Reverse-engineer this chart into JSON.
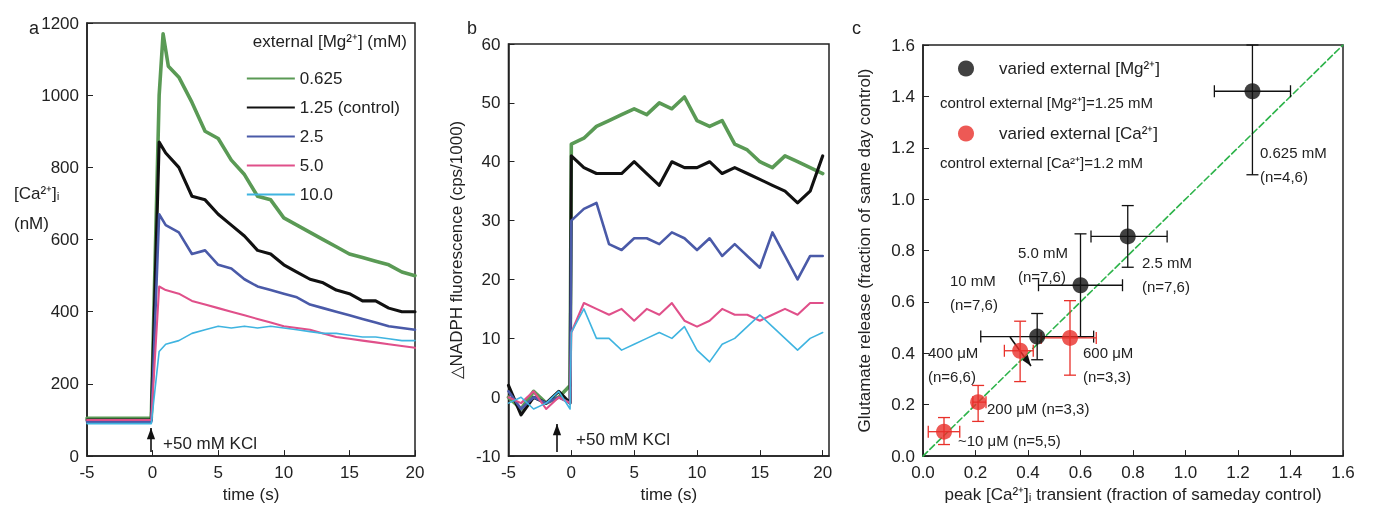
{
  "chart_data": [
    {
      "type": "line",
      "title": "a",
      "xlabel": "time (s)",
      "ylabel": "[Ca²⁺]ᵢ\n(nM)",
      "legend_title": "external [Mg²⁺] (mM)",
      "legend": "top right",
      "marker": "none",
      "line_style": "solid",
      "grid": false,
      "xlim": [
        -5,
        20
      ],
      "xticks": [
        -5,
        0,
        5,
        10,
        15,
        20
      ],
      "ylim": [
        0,
        1200
      ],
      "yticks": [
        0,
        200,
        400,
        600,
        800,
        1000,
        1200
      ],
      "annotations": [
        "+50 mM KCl"
      ],
      "series": [
        {
          "name": "0.625",
          "color": "#5a9a55",
          "x": [
            -5,
            -0.1,
            0.5,
            0.8,
            1.2,
            2,
            3,
            4,
            5,
            6,
            7,
            8,
            9,
            10,
            11,
            12,
            13,
            14,
            15,
            16,
            17,
            18,
            19,
            20
          ],
          "values": [
            105,
            105,
            1000,
            1170,
            1080,
            1050,
            980,
            900,
            880,
            820,
            780,
            720,
            710,
            660,
            640,
            620,
            600,
            580,
            560,
            550,
            540,
            530,
            510,
            500
          ]
        },
        {
          "name": "1.25 (control)",
          "color": "#111111",
          "x": [
            -5,
            -0.1,
            0.5,
            1,
            2,
            3,
            4,
            5,
            6,
            7,
            8,
            9,
            10,
            11,
            12,
            13,
            14,
            15,
            16,
            17,
            18,
            19,
            20
          ],
          "values": [
            100,
            100,
            870,
            840,
            800,
            720,
            710,
            670,
            640,
            610,
            570,
            560,
            530,
            510,
            490,
            480,
            460,
            450,
            430,
            430,
            410,
            400,
            400
          ]
        },
        {
          "name": "2.5",
          "color": "#4a5aa8",
          "x": [
            -5,
            -0.1,
            0.5,
            1,
            2,
            3,
            4,
            5,
            6,
            7,
            8,
            9,
            10,
            11,
            12,
            13,
            14,
            15,
            16,
            17,
            18,
            19,
            20
          ],
          "values": [
            95,
            95,
            670,
            640,
            620,
            560,
            570,
            530,
            520,
            490,
            470,
            460,
            450,
            440,
            420,
            410,
            400,
            390,
            380,
            370,
            360,
            355,
            350
          ]
        },
        {
          "name": "5.0",
          "color": "#e0508a",
          "x": [
            -5,
            -0.1,
            0.5,
            1,
            2,
            3,
            4,
            5,
            6,
            7,
            8,
            9,
            10,
            11,
            12,
            13,
            14,
            15,
            16,
            17,
            18,
            19,
            20
          ],
          "values": [
            100,
            100,
            470,
            460,
            450,
            430,
            420,
            410,
            400,
            390,
            380,
            370,
            360,
            355,
            350,
            340,
            330,
            325,
            320,
            315,
            310,
            305,
            300
          ]
        },
        {
          "name": "10.0",
          "color": "#3fb4e0",
          "x": [
            -5,
            -0.1,
            0.5,
            1,
            2,
            3,
            4,
            5,
            6,
            7,
            8,
            9,
            10,
            11,
            12,
            13,
            14,
            15,
            16,
            17,
            18,
            19,
            20
          ],
          "values": [
            90,
            90,
            290,
            310,
            320,
            340,
            350,
            360,
            355,
            360,
            355,
            360,
            355,
            350,
            345,
            340,
            340,
            335,
            330,
            330,
            325,
            320,
            320
          ]
        }
      ]
    },
    {
      "type": "line",
      "title": "b",
      "xlabel": "time (s)",
      "ylabel": "△NADPH fluorescence (cps/1000)",
      "marker": "none",
      "line_style": "solid",
      "grid": false,
      "xlim": [
        -5,
        20.5
      ],
      "xticks": [
        -5,
        0,
        5,
        10,
        15,
        20
      ],
      "ylim": [
        -10,
        60
      ],
      "yticks": [
        -10,
        0,
        10,
        20,
        30,
        40,
        50,
        60
      ],
      "annotations": [
        "+50 mM KCl"
      ],
      "series": [
        {
          "color": "#5a9a55",
          "x": [
            -5,
            -4,
            -3,
            -2,
            -1,
            -0.1,
            0,
            1,
            2,
            3,
            4,
            5,
            6,
            7,
            8,
            9,
            10,
            11,
            12,
            13,
            14,
            15,
            16,
            17,
            18,
            19,
            20
          ],
          "values": [
            0,
            -2,
            1,
            -1,
            0,
            2,
            43,
            44,
            46,
            47,
            48,
            49,
            48,
            50,
            49,
            51,
            47,
            46,
            47,
            43,
            42,
            40,
            39,
            41,
            40,
            39,
            38
          ]
        },
        {
          "color": "#111111",
          "x": [
            -5,
            -4,
            -3,
            -2,
            -1,
            -0.1,
            0,
            1,
            2,
            3,
            4,
            5,
            6,
            7,
            8,
            9,
            10,
            11,
            12,
            13,
            14,
            15,
            16,
            17,
            18,
            19,
            20
          ],
          "values": [
            2,
            -3,
            0,
            -1,
            1,
            -1,
            41,
            39,
            38,
            38,
            38,
            40,
            38,
            36,
            40,
            39,
            39,
            40,
            38,
            39,
            38,
            37,
            36,
            35,
            33,
            35,
            41
          ]
        },
        {
          "color": "#4a5aa8",
          "x": [
            -5,
            -4,
            -3,
            -2,
            -1,
            -0.1,
            0,
            1,
            2,
            3,
            4,
            5,
            6,
            7,
            8,
            9,
            10,
            11,
            12,
            13,
            14,
            15,
            16,
            17,
            18,
            19,
            20
          ],
          "values": [
            1,
            -2,
            0,
            -1,
            0,
            -1,
            30,
            32,
            33,
            26,
            25,
            27,
            27,
            26,
            28,
            27,
            25,
            27,
            24,
            26,
            24,
            22,
            28,
            24,
            20,
            24,
            24
          ]
        },
        {
          "color": "#e0508a",
          "x": [
            -5,
            -4,
            -3,
            -2,
            -1,
            -0.1,
            0,
            1,
            2,
            3,
            4,
            5,
            6,
            7,
            8,
            9,
            10,
            11,
            12,
            13,
            14,
            15,
            16,
            17,
            18,
            19,
            20
          ],
          "values": [
            0,
            -1,
            1,
            -2,
            0,
            -1,
            11,
            16,
            15,
            14,
            15,
            13,
            15,
            14,
            16,
            13,
            12,
            13,
            15,
            14,
            14,
            13,
            14,
            15,
            14,
            16,
            16
          ]
        },
        {
          "color": "#3fb4e0",
          "x": [
            -5,
            -4,
            -3,
            -2,
            -1,
            -0.1,
            0,
            1,
            2,
            3,
            4,
            5,
            6,
            7,
            8,
            9,
            10,
            11,
            12,
            13,
            14,
            15,
            16,
            17,
            18,
            19,
            20
          ],
          "values": [
            -1,
            0,
            -2,
            -1,
            1,
            -2,
            11,
            15,
            10,
            10,
            8,
            9,
            10,
            11,
            10,
            12,
            8,
            6,
            9,
            10,
            12,
            14,
            12,
            10,
            8,
            10,
            11
          ]
        }
      ]
    },
    {
      "type": "scatter",
      "title": "c",
      "xlabel": "peak [Ca²⁺]ᵢ transient (fraction of sameday control)",
      "ylabel": "Glutamate release (fraction of same day control)",
      "legend": "top left",
      "grid": false,
      "xlim": [
        0,
        1.6
      ],
      "xticks": [
        {
          "value": 0,
          "label": "0.0"
        },
        0.2,
        0.4,
        0.6,
        0.8,
        {
          "value": 1,
          "label": "1.0"
        },
        1.2,
        1.4,
        1.6
      ],
      "ylim": [
        0,
        1.6
      ],
      "yticks": [
        {
          "value": 0,
          "label": "0.0"
        },
        0.2,
        0.4,
        0.6,
        0.8,
        {
          "value": 1,
          "label": "1.0"
        },
        1.2,
        1.4,
        1.6
      ],
      "annotations": [
        "control external [Mg²⁺]=1.25 mM",
        "control external [Ca²⁺]=1.2 mM",
        "0.625 mM\n(n=4,6)",
        "10 mM\n(n=7,6)",
        "5.0 mM\n(n=7,6)",
        "2.5 mM\n(n=7,6)",
        "400 μM\n(n=6,6)",
        "600 μM\n(n=3,3)",
        "200 μM (n=3,3)",
        "~10 μM (n=5,5)"
      ],
      "series": [
        {
          "name": "varied external [Mg²⁺]",
          "color": "#111111",
          "marker": "circle",
          "x": [
            1.255,
            0.78,
            0.6,
            0.435
          ],
          "values": [
            1.42,
            0.855,
            0.665,
            0.465
          ],
          "errors": [
            [
              1.095,
              1.6
            ],
            [
              0.735,
              0.975
            ],
            [
              0.465,
              0.865
            ],
            [
              0.375,
              0.555
            ]
          ],
          "xerrors": [
            [
              1.11,
              1.4
            ],
            [
              0.64,
              0.93
            ],
            [
              0.44,
              0.76
            ],
            [
              0.22,
              0.65
            ]
          ]
        },
        {
          "name": "varied external [Ca²⁺]",
          "color": "#e8302a",
          "marker": "circle",
          "x": [
            0.56,
            0.37,
            0.21,
            0.08
          ],
          "values": [
            0.46,
            0.41,
            0.21,
            0.095
          ],
          "errors": [
            [
              0.315,
              0.605
            ],
            [
              0.29,
              0.525
            ],
            [
              0.135,
              0.275
            ],
            [
              0.045,
              0.15
            ]
          ],
          "xerrors": [
            [
              0.45,
              0.66
            ],
            [
              0.31,
              0.42
            ],
            [
              0.19,
              0.24
            ],
            [
              0.02,
              0.14
            ]
          ]
        },
        {
          "type": "line",
          "color": "#2db34a",
          "line_style": "dashed",
          "marker": "none",
          "x": [
            0,
            1.6
          ],
          "values": [
            0,
            1.6
          ]
        }
      ]
    }
  ]
}
